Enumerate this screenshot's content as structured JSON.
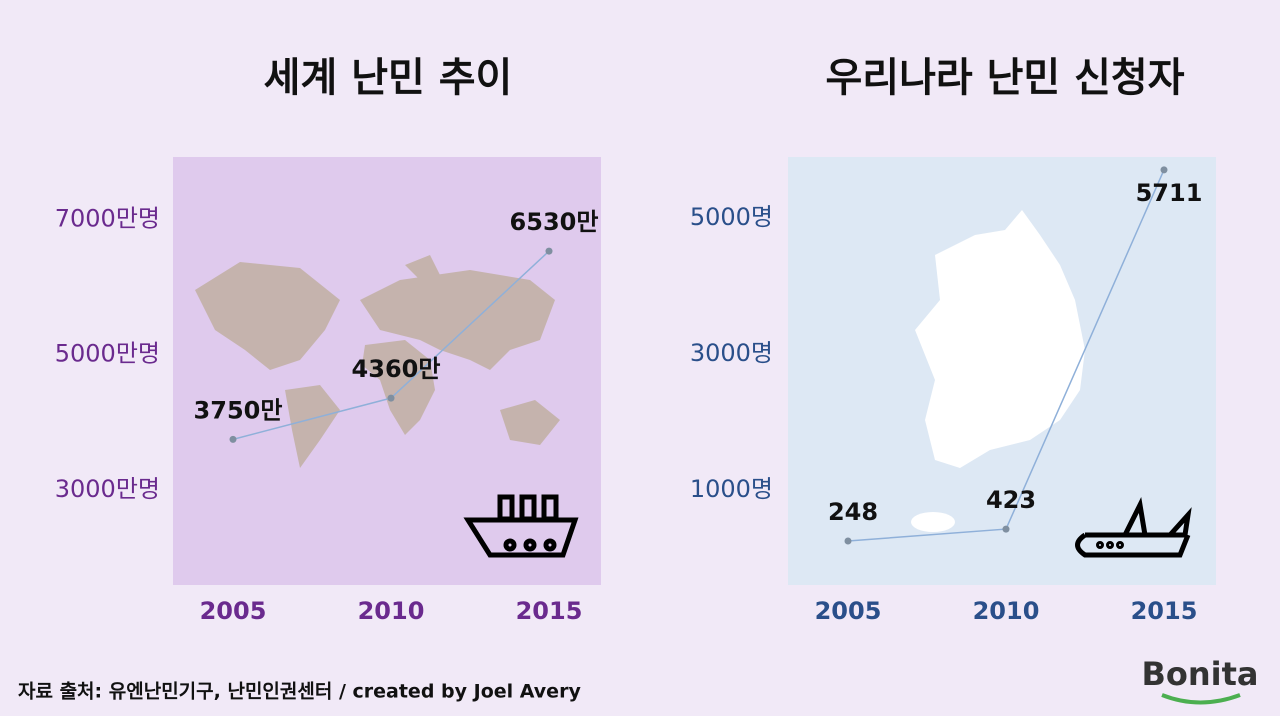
{
  "chart_data": [
    {
      "type": "line",
      "title": "세계 난민 추이",
      "categories": [
        "2005",
        "2010",
        "2015"
      ],
      "values": [
        3750,
        4360,
        6530
      ],
      "value_labels": [
        "3750만",
        "4360만",
        "6530만"
      ],
      "color": "#8fb0d9",
      "ylim": [
        1600,
        7920
      ],
      "yticks": [
        {
          "value": 3000,
          "label": "3000만명"
        },
        {
          "value": 5000,
          "label": "5000만명"
        },
        {
          "value": 7000,
          "label": "7000만명"
        }
      ]
    },
    {
      "type": "line",
      "title": "우리나라 난민 신청자",
      "categories": [
        "2005",
        "2010",
        "2015"
      ],
      "values": [
        248,
        423,
        5711
      ],
      "color": "#8fb0d9",
      "ylim": [
        -400,
        5900
      ],
      "yticks": [
        {
          "value": 1000,
          "label": "1000명"
        },
        {
          "value": 3000,
          "label": "3000명"
        },
        {
          "value": 5000,
          "label": "5000명"
        }
      ]
    }
  ],
  "source": "자료 출처: 유엔난민기구, 난민인권센터 / created by Joel Avery",
  "logo": "Bonita"
}
